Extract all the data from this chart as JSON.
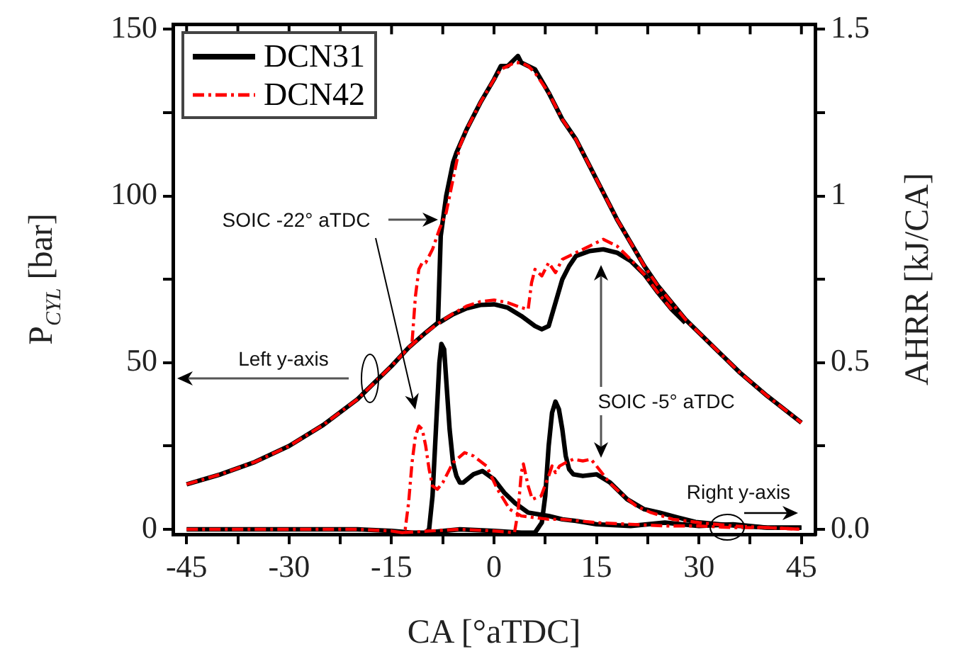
{
  "chart_data": {
    "type": "line",
    "xlabel": "CA [°aTDC]",
    "ylabel": "P$_{CYL}$ [bar]",
    "y2label": "AHRR [kJ/CA]",
    "xlim": [
      -47,
      47
    ],
    "xticks": [
      -45,
      {
        "value": -37.5,
        "label": null
      },
      -30,
      {
        "value": -22.5,
        "label": null
      },
      -15,
      {
        "value": -7.5,
        "label": null
      },
      0,
      {
        "value": 7.5,
        "label": null
      },
      15,
      {
        "value": 22.5,
        "label": null
      },
      30,
      {
        "value": 37.5,
        "label": null
      },
      45
    ],
    "ylim": [
      -1.5,
      151.5
    ],
    "yticks": [
      0,
      {
        "value": 25,
        "label": null
      },
      50,
      {
        "value": 75,
        "label": null
      },
      100,
      {
        "value": 125,
        "label": null
      },
      150
    ],
    "y2lim": [
      -0.015,
      1.515
    ],
    "y2ticks": [
      {
        "value": 0,
        "label": "0.0"
      },
      {
        "value": 0.25,
        "label": null
      },
      0.5,
      {
        "value": 0.75,
        "label": null
      },
      1,
      {
        "value": 1.25,
        "label": null
      },
      1.5
    ],
    "legend": "top left",
    "series": [
      {
        "name": "DCN31",
        "color": "#000000",
        "line_style": "solid",
        "x": [
          -45,
          -40,
          -35,
          -30,
          -25,
          -20,
          -15,
          -12.5,
          -10,
          -8.2,
          -7.8,
          -7,
          -6,
          -5.5,
          -4,
          -2,
          0,
          1,
          2,
          3,
          3.5,
          4,
          5,
          6,
          8,
          10,
          12,
          14,
          16,
          18,
          20,
          22,
          24,
          26,
          28,
          30,
          33,
          36,
          40,
          45
        ],
        "values": [
          13.5,
          16.5,
          20.2,
          25,
          31.3,
          39,
          49,
          54.5,
          59,
          62,
          88,
          100,
          110,
          113,
          120,
          128,
          135,
          139,
          139,
          141,
          142,
          140,
          139,
          138,
          131,
          123,
          117,
          109,
          101,
          93,
          86,
          79,
          73,
          68,
          63,
          59,
          53,
          47,
          40,
          32
        ]
      },
      {
        "name": "DCN42",
        "color": "#ff0000",
        "line_style": "dashed",
        "x": [
          -45,
          -40,
          -35,
          -30,
          -25,
          -20,
          -15,
          -12.5,
          -12,
          -11.5,
          -11,
          -10.5,
          -10,
          -9,
          -8,
          -7,
          -6,
          -5,
          -4,
          -2,
          0,
          1,
          2,
          3,
          4,
          5,
          6,
          8,
          10,
          12,
          14,
          16,
          18,
          20,
          22,
          24,
          26,
          28,
          30,
          33,
          36,
          40,
          45
        ],
        "values": [
          13.5,
          16.5,
          20.2,
          25,
          31.3,
          39,
          49,
          54.5,
          56,
          70,
          78,
          80,
          80,
          84,
          90,
          95,
          105,
          115,
          120,
          128,
          135,
          138,
          139,
          140,
          140,
          139,
          137,
          131,
          123,
          117,
          109,
          101,
          93,
          86,
          79,
          73,
          68,
          63,
          59,
          53,
          47,
          40,
          32
        ]
      },
      {
        "color": "#000000",
        "line_style": "solid",
        "x": [
          -8,
          -6,
          -4,
          -2,
          0,
          2,
          4,
          6,
          7,
          8,
          9,
          10,
          11,
          12,
          14,
          16,
          18,
          20,
          22,
          24,
          26,
          28
        ],
        "values": [
          62,
          64.5,
          66.3,
          67.3,
          67.5,
          66.5,
          64,
          61,
          60,
          61,
          68,
          75,
          79,
          82,
          83.5,
          84,
          83,
          80.5,
          76.5,
          71,
          66,
          62
        ]
      },
      {
        "color": "#ff0000",
        "line_style": "dashed",
        "x": [
          -12.5,
          -10,
          -8,
          -6,
          -4,
          -2,
          0,
          2,
          4,
          5,
          5.5,
          6,
          7,
          8,
          9,
          10,
          12,
          14,
          16,
          18,
          20,
          22,
          24,
          26
        ],
        "values": [
          54.5,
          59,
          62,
          64.7,
          67,
          68.3,
          68.8,
          68,
          66.5,
          66,
          74,
          78,
          76,
          80,
          77,
          81,
          83,
          85,
          87,
          85,
          81,
          76.5,
          71,
          66
        ]
      },
      {
        "color": "#000000",
        "line_style": "solid",
        "axis": "y2",
        "x": [
          -45,
          -30,
          -20,
          -15,
          -12,
          -10,
          -9.5,
          -9,
          -8.5,
          -8,
          -7.7,
          -7.3,
          -7,
          -6.5,
          -6,
          -5.5,
          -5,
          -4.5,
          -3,
          -1.7,
          0,
          1.5,
          3,
          5,
          8,
          10,
          12,
          15,
          20,
          25,
          30,
          35,
          40,
          45
        ],
        "values": [
          0,
          0,
          0,
          -0.005,
          -0.01,
          -0.01,
          0,
          0.1,
          0.3,
          0.5,
          0.556,
          0.54,
          0.45,
          0.3,
          0.2,
          0.16,
          0.14,
          0.14,
          0.165,
          0.175,
          0.15,
          0.11,
          0.08,
          0.05,
          0.04,
          0.03,
          0.025,
          0.015,
          0.01,
          0.02,
          0.01,
          0.015,
          0.005,
          0.005
        ]
      },
      {
        "color": "#ff0000",
        "line_style": "dashed",
        "axis": "y2",
        "x": [
          -45,
          -30,
          -20,
          -15,
          -13.5,
          -13,
          -12.5,
          -12,
          -11.5,
          -11,
          -10.5,
          -10,
          -9.5,
          -9,
          -8.3,
          -7.5,
          -6,
          -4.3,
          -3,
          -1.1,
          0.5,
          2.3,
          4,
          6,
          8,
          10,
          15,
          20,
          25,
          30,
          35,
          40,
          45
        ],
        "values": [
          0,
          0,
          0,
          -0.005,
          -0.01,
          0,
          0.08,
          0.2,
          0.28,
          0.31,
          0.3,
          0.25,
          0.18,
          0.13,
          0.12,
          0.14,
          0.2,
          0.23,
          0.22,
          0.19,
          0.12,
          0.06,
          0.04,
          0.035,
          0.03,
          0.03,
          0.02,
          0.015,
          0.01,
          0.01,
          0.005,
          0.005,
          0
        ]
      },
      {
        "color": "#000000",
        "line_style": "solid",
        "axis": "y2",
        "x": [
          -10,
          -5,
          0,
          4,
          6,
          7,
          7.5,
          8,
          8.5,
          9,
          9.5,
          10,
          10.5,
          11,
          11.6,
          13,
          15,
          17,
          19.5,
          22,
          24.2,
          27,
          29.5,
          33,
          36,
          40,
          45
        ],
        "values": [
          -0.01,
          0,
          -0.005,
          -0.01,
          -0.01,
          0.02,
          0.1,
          0.25,
          0.35,
          0.383,
          0.36,
          0.3,
          0.22,
          0.18,
          0.165,
          0.16,
          0.165,
          0.14,
          0.09,
          0.06,
          0.05,
          0.035,
          0.022,
          0.015,
          0.01,
          0.005,
          0.005
        ]
      },
      {
        "color": "#ff0000",
        "line_style": "dashed",
        "axis": "y2",
        "x": [
          -13.5,
          -5,
          0,
          3,
          3.5,
          4,
          4.3,
          5,
          5.6,
          6.9,
          8,
          8.5,
          9,
          9.6,
          10.5,
          11.6,
          13,
          14.2,
          15,
          16.9,
          19,
          20.8,
          23,
          26.2,
          30,
          35,
          40,
          45
        ],
        "values": [
          -0.01,
          0,
          -0.005,
          -0.01,
          0.05,
          0.17,
          0.196,
          0.13,
          0.09,
          0.1,
          0.16,
          0.19,
          0.17,
          0.19,
          0.2,
          0.21,
          0.205,
          0.21,
          0.19,
          0.14,
          0.1,
          0.07,
          0.05,
          0.03,
          0.02,
          0.01,
          0.005,
          0
        ]
      }
    ],
    "annotations": [
      "SOIC -22° aTDC",
      "Left y-axis",
      "SOIC -5° aTDC",
      "Right y-axis"
    ]
  }
}
